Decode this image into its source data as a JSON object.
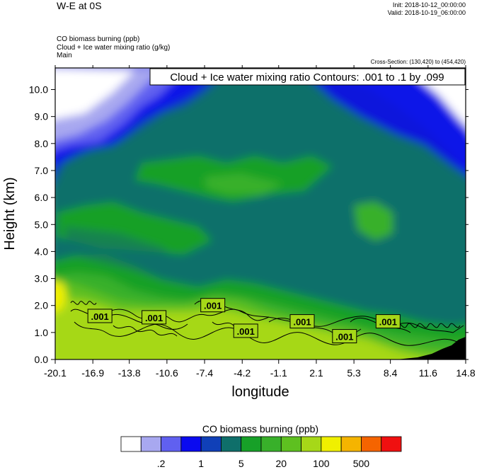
{
  "header": {
    "title": "W-E at 0S",
    "init": "Init: 2018-10-12_00:00:00",
    "valid": "Valid: 2018-10-19_06:00:00",
    "fields": [
      "CO biomass burning   (ppb)",
      "Cloud + Ice water mixing ratio   (g/kg)",
      "Main"
    ],
    "cross_section": "Cross-Section: (130,420) to (454,420)"
  },
  "colors": {
    "levels": [
      "#ffffff",
      "#a8a8f0",
      "#6060f0",
      "#0a0af0",
      "#1040b8",
      "#0f6f6a",
      "#17a028",
      "#38b02a",
      "#5ec020",
      "#a6d818",
      "#f0f000",
      "#f5b400",
      "#f56400",
      "#f01010"
    ]
  },
  "chart_data": {
    "type": "contour",
    "title": "Cloud + Ice water mixing ratio Contours: .001 to .1 by .099",
    "xlabel": "longitude",
    "ylabel": "Height (km)",
    "xlim": [
      -20.1,
      14.8
    ],
    "ylim": [
      0.0,
      10.8
    ],
    "x_ticks": [
      "-20.1",
      "-16.9",
      "-13.8",
      "-10.6",
      "-7.4",
      "-4.2",
      "-1.1",
      "2.1",
      "5.3",
      "8.4",
      "11.6",
      "14.8"
    ],
    "y_ticks": [
      "0.0",
      "1.0",
      "2.0",
      "3.0",
      "4.0",
      "5.0",
      "6.0",
      "7.0",
      "8.0",
      "9.0",
      "10.0"
    ],
    "contour_labels": [
      {
        "text": ".001",
        "x": -16.3,
        "y": 1.6
      },
      {
        "text": ".001",
        "x": -11.7,
        "y": 1.55
      },
      {
        "text": ".001",
        "x": -6.7,
        "y": 2.0
      },
      {
        "text": ".001",
        "x": -3.9,
        "y": 1.05
      },
      {
        "text": ".001",
        "x": 0.9,
        "y": 1.4
      },
      {
        "text": ".001",
        "x": 4.5,
        "y": 0.85
      },
      {
        "text": ".001",
        "x": 8.2,
        "y": 1.4
      }
    ],
    "colorbar": {
      "title": "CO biomass burning  (ppb)",
      "tick_labels": [
        ".2",
        "1",
        "5",
        "20",
        "100",
        "500"
      ]
    }
  }
}
